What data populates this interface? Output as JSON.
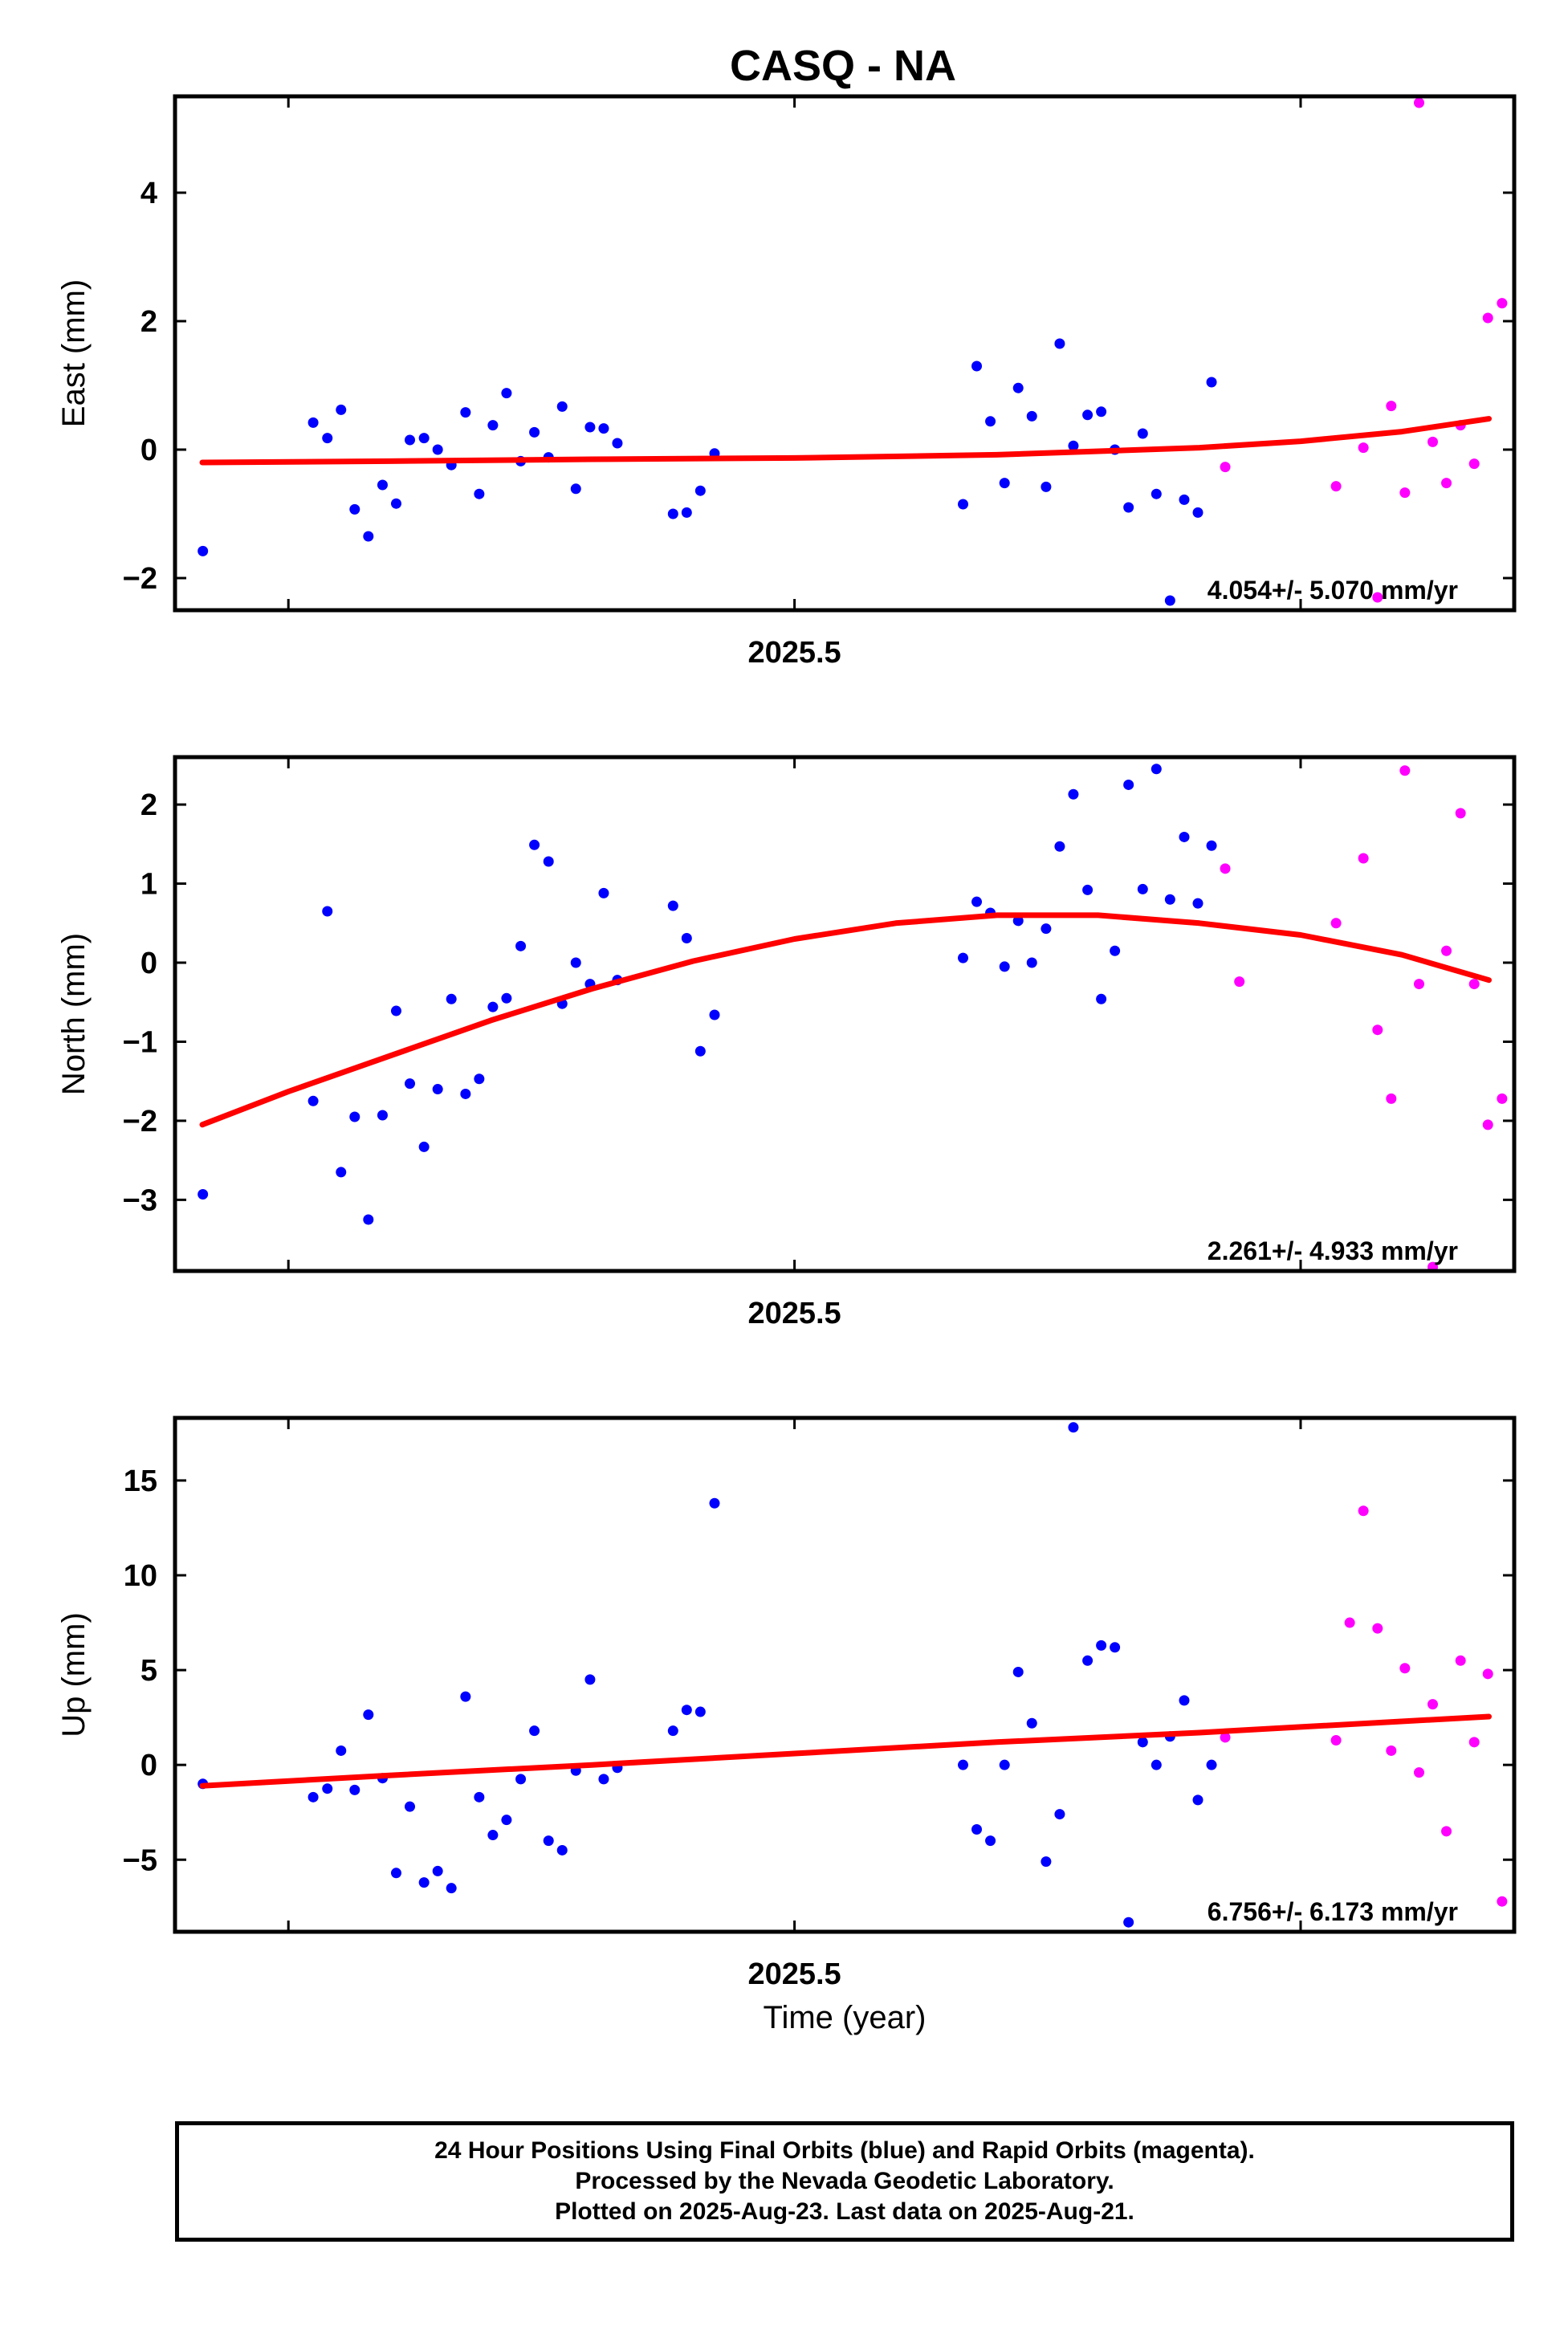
{
  "title": "CASQ - NA",
  "xlabel": "Time (year)",
  "footer_lines": [
    "24 Hour Positions Using Final Orbits (blue) and Rapid Orbits (magenta).",
    "Processed by the Nevada Geodetic Laboratory.",
    "Plotted on 2025-Aug-23. Last data on 2025-Aug-21."
  ],
  "colors": {
    "final": "#0000ff",
    "rapid": "#ff00ff",
    "fit": "#ff0000"
  },
  "chart_data": [
    {
      "type": "scatter",
      "ylabel": "East (mm)",
      "xlim": [
        2025.3776,
        2025.6422
      ],
      "ylim": [
        -2.5,
        5.5
      ],
      "yticks": [
        -2,
        0,
        2,
        4
      ],
      "ytick_labels": [
        "−2",
        "0",
        "2",
        "4"
      ],
      "xticks": [
        2025.4,
        2025.5,
        2025.6
      ],
      "xtick_labels": [
        "",
        "2025.5",
        ""
      ],
      "rate_label": "4.054+/- 5.070 mm/yr",
      "fit": {
        "x": [
          2025.383,
          2025.42,
          2025.46,
          2025.5,
          2025.54,
          2025.58,
          2025.6,
          2025.62,
          2025.6372
        ],
        "y": [
          -0.2,
          -0.18,
          -0.15,
          -0.13,
          -0.08,
          0.03,
          0.13,
          0.28,
          0.48
        ]
      },
      "series": [
        {
          "kind": "final",
          "x": [
            2025.3831,
            2025.4049,
            2025.4077,
            2025.4104,
            2025.4131,
            2025.4158,
            2025.4186,
            2025.4213,
            2025.424,
            2025.4268,
            2025.4295,
            2025.4322,
            2025.435,
            2025.4377,
            2025.4404,
            2025.4431,
            2025.4459,
            2025.4486,
            2025.4514,
            2025.4541,
            2025.4568,
            2025.4596,
            2025.4623,
            2025.465,
            2025.476,
            2025.4787,
            2025.4814,
            2025.4842,
            2025.5333,
            2025.536,
            2025.5387,
            2025.5415,
            2025.5442,
            2025.5469,
            2025.5497,
            2025.5524,
            2025.5551,
            2025.5579,
            2025.5606,
            2025.5633,
            2025.566,
            2025.5688,
            2025.5715,
            2025.5742,
            2025.577,
            2025.5797,
            2025.5824
          ],
          "y": [
            -1.58,
            0.42,
            0.18,
            0.62,
            -0.93,
            -1.35,
            -0.55,
            -0.84,
            0.15,
            0.18,
            0.0,
            -0.24,
            0.58,
            -0.69,
            0.38,
            0.88,
            -0.18,
            0.27,
            -0.12,
            0.67,
            -0.61,
            0.35,
            0.33,
            0.1,
            -1.0,
            -0.98,
            -0.64,
            -0.06,
            -0.85,
            1.3,
            0.44,
            -0.52,
            0.96,
            0.52,
            -0.58,
            1.65,
            0.06,
            0.54,
            0.59,
            0.0,
            -0.9,
            0.25,
            -0.69,
            -2.35,
            -0.78,
            -0.98,
            1.05
          ]
        },
        {
          "kind": "rapid",
          "x": [
            2025.5851,
            2025.607,
            2025.6124,
            2025.6152,
            2025.6179,
            2025.6206,
            2025.6234,
            2025.6261,
            2025.6288,
            2025.6316,
            2025.6343,
            2025.637,
            2025.6398
          ],
          "y": [
            -0.27,
            -0.57,
            0.03,
            -2.3,
            0.68,
            -0.67,
            5.4,
            0.12,
            -0.52,
            0.38,
            -0.22,
            2.05,
            2.28
          ]
        }
      ]
    },
    {
      "type": "scatter",
      "ylabel": "North (mm)",
      "xlim": [
        2025.3776,
        2025.6422
      ],
      "ylim": [
        -3.9,
        2.6
      ],
      "yticks": [
        -3,
        -2,
        -1,
        0,
        1,
        2
      ],
      "ytick_labels": [
        "−3",
        "−2",
        "−1",
        "0",
        "1",
        "2"
      ],
      "xticks": [
        2025.4,
        2025.5,
        2025.6
      ],
      "xtick_labels": [
        "",
        "2025.5",
        ""
      ],
      "rate_label": "2.261+/- 4.933 mm/yr",
      "fit": {
        "x": [
          2025.383,
          2025.4,
          2025.42,
          2025.44,
          2025.46,
          2025.48,
          2025.5,
          2025.52,
          2025.54,
          2025.56,
          2025.58,
          2025.6,
          2025.62,
          2025.6372
        ],
        "y": [
          -2.05,
          -1.63,
          -1.18,
          -0.73,
          -0.33,
          0.02,
          0.3,
          0.5,
          0.6,
          0.6,
          0.5,
          0.35,
          0.1,
          -0.22
        ]
      },
      "series": [
        {
          "kind": "final",
          "x": [
            2025.3831,
            2025.4049,
            2025.4077,
            2025.4104,
            2025.4131,
            2025.4158,
            2025.4186,
            2025.4213,
            2025.424,
            2025.4268,
            2025.4295,
            2025.4322,
            2025.435,
            2025.4377,
            2025.4404,
            2025.4431,
            2025.4459,
            2025.4486,
            2025.4514,
            2025.4541,
            2025.4568,
            2025.4596,
            2025.4623,
            2025.465,
            2025.476,
            2025.4787,
            2025.4814,
            2025.4842,
            2025.5333,
            2025.536,
            2025.5387,
            2025.5415,
            2025.5442,
            2025.5469,
            2025.5497,
            2025.5524,
            2025.5551,
            2025.5579,
            2025.5606,
            2025.5633,
            2025.566,
            2025.5688,
            2025.5715,
            2025.5742,
            2025.577,
            2025.5797,
            2025.5824
          ],
          "y": [
            -2.93,
            -1.75,
            0.65,
            -2.65,
            -1.95,
            -3.25,
            -1.93,
            -0.61,
            -1.53,
            -2.33,
            -1.6,
            -0.46,
            -1.66,
            -1.47,
            -0.56,
            -0.45,
            0.21,
            1.49,
            1.28,
            -0.52,
            0.0,
            -0.27,
            0.88,
            -0.22,
            0.72,
            0.31,
            -1.12,
            -0.66,
            0.06,
            0.77,
            0.63,
            -0.05,
            0.53,
            0.0,
            0.43,
            1.47,
            2.13,
            0.92,
            -0.46,
            0.15,
            2.25,
            0.93,
            2.45,
            0.8,
            1.59,
            0.75,
            1.48
          ]
        },
        {
          "kind": "rapid",
          "x": [
            2025.5851,
            2025.5879,
            2025.607,
            2025.6124,
            2025.6152,
            2025.6179,
            2025.6206,
            2025.6234,
            2025.6261,
            2025.6288,
            2025.6316,
            2025.6343,
            2025.637,
            2025.6398
          ],
          "y": [
            1.19,
            -0.24,
            0.5,
            1.32,
            -0.85,
            -1.72,
            2.43,
            -0.27,
            -3.85,
            0.15,
            1.89,
            -0.27,
            -2.05,
            -1.72
          ]
        }
      ]
    },
    {
      "type": "scatter",
      "ylabel": "Up (mm)",
      "xlim": [
        2025.3776,
        2025.6422
      ],
      "ylim": [
        -8.8,
        18.3
      ],
      "yticks": [
        -5,
        0,
        5,
        10,
        15
      ],
      "ytick_labels": [
        "−5",
        "0",
        "5",
        "10",
        "15"
      ],
      "xticks": [
        2025.4,
        2025.5,
        2025.6
      ],
      "xtick_labels": [
        "",
        "2025.5",
        ""
      ],
      "rate_label": "6.756+/- 6.173 mm/yr",
      "fit": {
        "x": [
          2025.383,
          2025.42,
          2025.46,
          2025.5,
          2025.54,
          2025.58,
          2025.6,
          2025.6372
        ],
        "y": [
          -1.1,
          -0.55,
          0.0,
          0.6,
          1.2,
          1.7,
          2.0,
          2.55
        ]
      },
      "series": [
        {
          "kind": "final",
          "x": [
            2025.3831,
            2025.4049,
            2025.4077,
            2025.4104,
            2025.4131,
            2025.4158,
            2025.4186,
            2025.4213,
            2025.424,
            2025.4268,
            2025.4295,
            2025.4322,
            2025.435,
            2025.4377,
            2025.4404,
            2025.4431,
            2025.4459,
            2025.4486,
            2025.4514,
            2025.4541,
            2025.4568,
            2025.4596,
            2025.4623,
            2025.465,
            2025.476,
            2025.4787,
            2025.4814,
            2025.4842,
            2025.5333,
            2025.536,
            2025.5387,
            2025.5415,
            2025.5442,
            2025.5469,
            2025.5497,
            2025.5524,
            2025.5551,
            2025.5579,
            2025.5606,
            2025.5633,
            2025.566,
            2025.5688,
            2025.5715,
            2025.5742,
            2025.577,
            2025.5797,
            2025.5824
          ],
          "y": [
            -1.0,
            -1.7,
            -1.25,
            0.75,
            -1.32,
            2.65,
            -0.7,
            -5.7,
            -2.2,
            -6.2,
            -5.6,
            -6.5,
            3.6,
            -1.7,
            -3.7,
            -2.9,
            -0.75,
            1.8,
            -4.0,
            -4.5,
            -0.3,
            4.5,
            -0.75,
            -0.15,
            1.8,
            2.9,
            2.8,
            13.8,
            0.0,
            -3.4,
            -4.0,
            0.0,
            4.9,
            2.2,
            -5.1,
            -2.6,
            17.8,
            5.5,
            6.3,
            6.2,
            -8.3,
            1.2,
            0.0,
            1.5,
            3.4,
            -1.85,
            0.0
          ]
        },
        {
          "kind": "rapid",
          "x": [
            2025.5851,
            2025.607,
            2025.6097,
            2025.6124,
            2025.6152,
            2025.6179,
            2025.6206,
            2025.6234,
            2025.6261,
            2025.6288,
            2025.6316,
            2025.6343,
            2025.637,
            2025.6398
          ],
          "y": [
            1.45,
            1.3,
            7.5,
            13.4,
            7.2,
            0.75,
            5.1,
            -0.4,
            3.2,
            -3.5,
            5.5,
            1.2,
            4.8,
            -7.2
          ]
        }
      ]
    }
  ]
}
